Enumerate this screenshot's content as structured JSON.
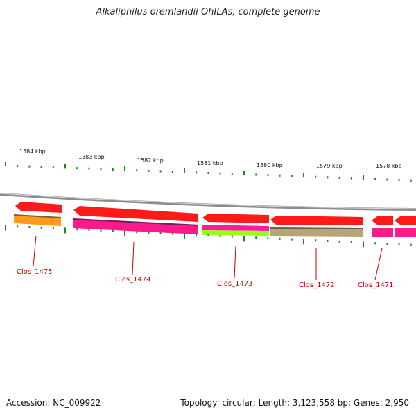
{
  "title": "Alkaliphilus oremlandii OhILAs, complete genome",
  "footer": {
    "accession": "Accession: NC_009922",
    "summary": "Topology: circular; Length: 3,123,558 bp; Genes: 2,950"
  },
  "colors": {
    "forward_gene": "#ff1a1a",
    "backbone": "#8c8c8c",
    "tick": "#1a8a1a",
    "label": "#cc0000"
  },
  "ruler": {
    "unit": "kbp",
    "labels": [
      "1584 kbp",
      "1583 kbp",
      "1582 kbp",
      "1581 kbp",
      "1580 kbp",
      "1579 kbp",
      "1578 kbp"
    ]
  },
  "genes": [
    {
      "name": "Clos_1475",
      "category_color": "#ff9a1a"
    },
    {
      "name": "Clos_1474",
      "category_color": "#ff1a8c"
    },
    {
      "name": "Clos_1473",
      "category_color": "#ff1aa0",
      "category_color_2": "#99ff1a"
    },
    {
      "name": "Clos_1472",
      "category_color": "#b3a77a"
    },
    {
      "name": "Clos_1471",
      "category_color": "#ff1a8c"
    }
  ]
}
